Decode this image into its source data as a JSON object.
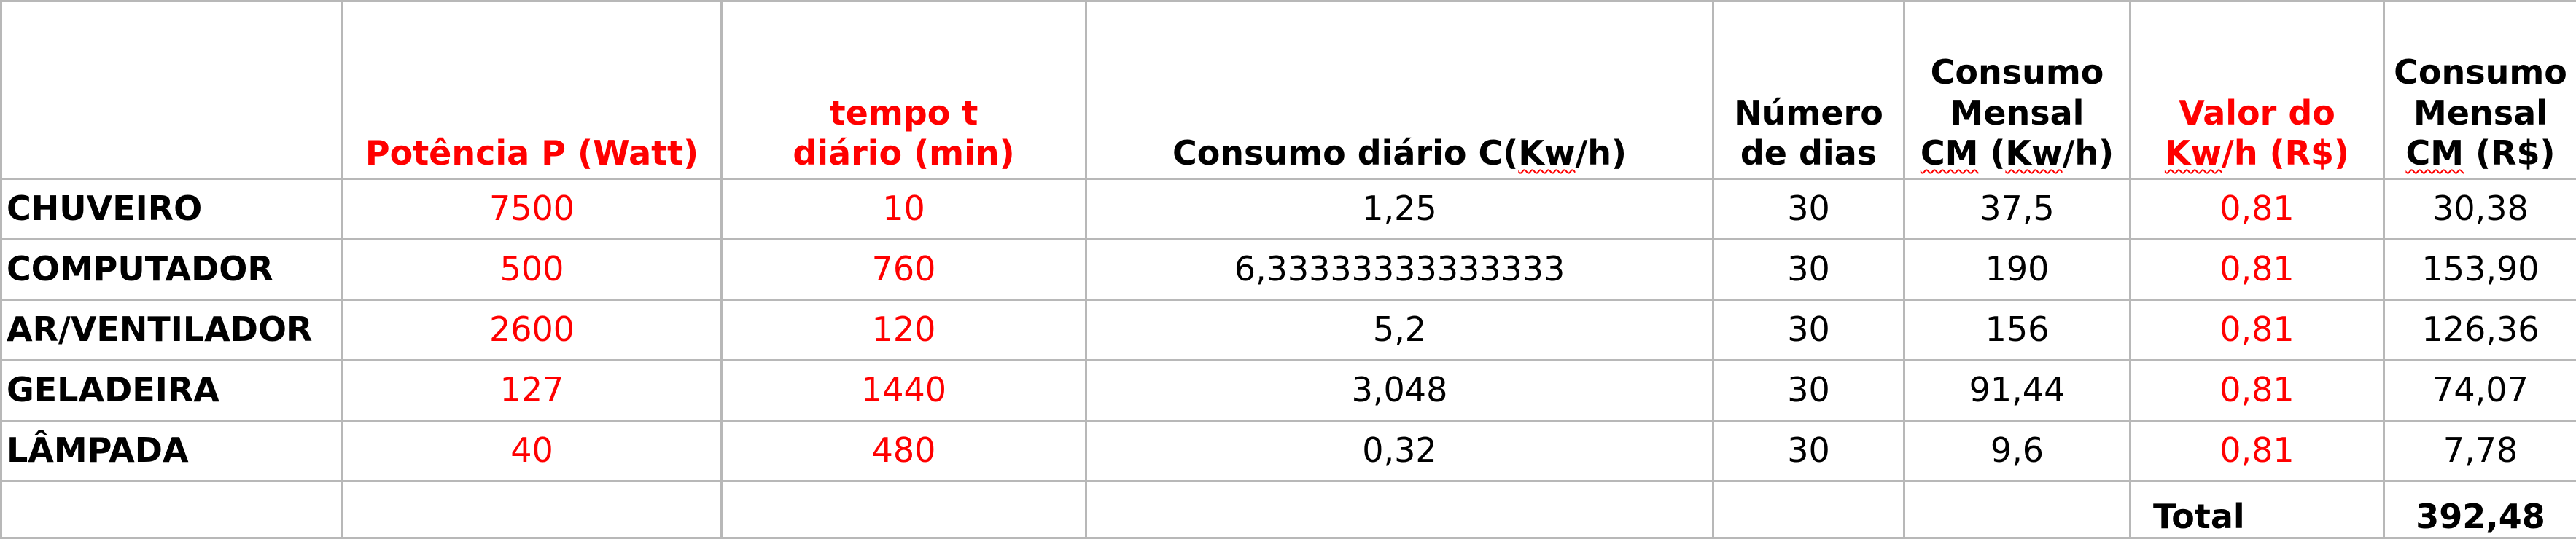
{
  "headers": {
    "appliance": "",
    "power": "Potência P (Watt)",
    "time_l1": "tempo t",
    "time_l2": "diário (min)",
    "daily_prefix": "Consumo diário C(",
    "daily_unit": "Kw",
    "daily_suffix": "/h)",
    "days_l1": "Número",
    "days_l2": "de dias",
    "monthly_l1": "Consumo",
    "monthly_l2": "Mensal",
    "monthly_abbr": "CM",
    "monthly_prefix": " (",
    "monthly_unit": "Kw",
    "monthly_suffix": "/h)",
    "price_l1": "Valor do",
    "price_unit": "Kw",
    "price_suffix": "/h (R$)",
    "cost_l1": "Consumo",
    "cost_l2": "Mensal",
    "cost_abbr": "CM",
    "cost_suffix": " (R$)"
  },
  "rows": [
    {
      "name": "CHUVEIRO",
      "power": "7500",
      "time": "10",
      "daily": "1,25",
      "days": "30",
      "monthly": "37,5",
      "price": "0,81",
      "cost": "30,38"
    },
    {
      "name": "COMPUTADOR",
      "power": "500",
      "time": "760",
      "daily": "6,33333333333333",
      "days": "30",
      "monthly": "190",
      "price": "0,81",
      "cost": "153,90"
    },
    {
      "name": "AR/VENTILADOR",
      "power": "2600",
      "time": "120",
      "daily": "5,2",
      "days": "30",
      "monthly": "156",
      "price": "0,81",
      "cost": "126,36"
    },
    {
      "name": "GELADEIRA",
      "power": "127",
      "time": "1440",
      "daily": "3,048",
      "days": "30",
      "monthly": "91,44",
      "price": "0,81",
      "cost": "74,07"
    },
    {
      "name": "LÂMPADA",
      "power": "40",
      "time": "480",
      "daily": "0,32",
      "days": "30",
      "monthly": "9,6",
      "price": "0,81",
      "cost": "7,78"
    }
  ],
  "total": {
    "label": "Total",
    "value": "392,48"
  },
  "colors": {
    "highlight_text": "#ff0000",
    "grid": "#b8b8b8",
    "text": "#000000"
  }
}
